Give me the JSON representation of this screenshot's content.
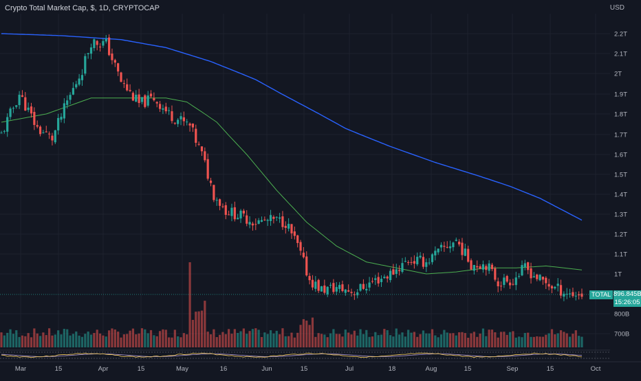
{
  "header": {
    "title": "Crypto Total Market Cap, $, 1D, CRYPTOCAP",
    "currency": "USD"
  },
  "price_label": {
    "series_name": "TOTAL",
    "value": "896.845B",
    "countdown": "15:26:05"
  },
  "colors": {
    "background": "#131722",
    "up": "#26a69a",
    "down": "#ef5350",
    "ma_long": "#2962ff",
    "ma_short": "#4caf50",
    "grid": "#1e222d",
    "axis_text": "#b2b5be"
  },
  "chart_data": {
    "type": "candlestick",
    "title": "Crypto Total Market Cap, $, 1D, CRYPTOCAP",
    "y_ticks": [
      "2.2T",
      "2.1T",
      "2T",
      "1.9T",
      "1.8T",
      "1.7T",
      "1.6T",
      "1.5T",
      "1.4T",
      "1.3T",
      "1.2T",
      "1.1T",
      "1T",
      "800B",
      "700B"
    ],
    "x_ticks": [
      "Mar",
      "15",
      "Apr",
      "15",
      "May",
      "16",
      "Jun",
      "15",
      "Jul",
      "18",
      "Aug",
      "15",
      "Sep",
      "15",
      "Oct"
    ],
    "y_range_T": [
      0.65,
      2.3
    ],
    "last_close_T": 0.896845,
    "close_keypoints_T": [
      [
        0,
        1.7
      ],
      [
        6,
        1.9
      ],
      [
        12,
        1.73
      ],
      [
        17,
        1.68
      ],
      [
        22,
        1.86
      ],
      [
        27,
        2.02
      ],
      [
        30,
        2.16
      ],
      [
        35,
        2.15
      ],
      [
        40,
        1.96
      ],
      [
        46,
        1.85
      ],
      [
        51,
        1.88
      ],
      [
        56,
        1.8
      ],
      [
        63,
        1.74
      ],
      [
        67,
        1.6
      ],
      [
        71,
        1.4
      ],
      [
        75,
        1.32
      ],
      [
        85,
        1.26
      ],
      [
        91,
        1.27
      ],
      [
        95,
        1.26
      ],
      [
        99,
        1.14
      ],
      [
        103,
        0.97
      ],
      [
        107,
        0.92
      ],
      [
        112,
        0.93
      ],
      [
        118,
        0.91
      ],
      [
        124,
        0.96
      ],
      [
        130,
        1.0
      ],
      [
        136,
        1.07
      ],
      [
        142,
        1.06
      ],
      [
        147,
        1.12
      ],
      [
        152,
        1.17
      ],
      [
        157,
        1.05
      ],
      [
        162,
        1.05
      ],
      [
        166,
        0.96
      ],
      [
        171,
        0.97
      ],
      [
        175,
        1.03
      ],
      [
        180,
        0.97
      ],
      [
        185,
        0.93
      ],
      [
        190,
        0.9
      ],
      [
        194,
        0.897
      ]
    ],
    "ma_short_keypoints_T": [
      [
        0,
        1.76
      ],
      [
        15,
        1.8
      ],
      [
        30,
        1.88
      ],
      [
        45,
        1.88
      ],
      [
        55,
        1.88
      ],
      [
        62,
        1.86
      ],
      [
        72,
        1.76
      ],
      [
        82,
        1.6
      ],
      [
        92,
        1.42
      ],
      [
        102,
        1.26
      ],
      [
        112,
        1.14
      ],
      [
        122,
        1.06
      ],
      [
        132,
        1.03
      ],
      [
        142,
        1.0
      ],
      [
        152,
        1.01
      ],
      [
        162,
        1.03
      ],
      [
        172,
        1.03
      ],
      [
        182,
        1.04
      ],
      [
        194,
        1.02
      ]
    ],
    "ma_long_keypoints_T": [
      [
        0,
        2.2
      ],
      [
        20,
        2.19
      ],
      [
        40,
        2.17
      ],
      [
        55,
        2.13
      ],
      [
        70,
        2.06
      ],
      [
        85,
        1.97
      ],
      [
        100,
        1.85
      ],
      [
        115,
        1.73
      ],
      [
        130,
        1.64
      ],
      [
        145,
        1.56
      ],
      [
        160,
        1.49
      ],
      [
        170,
        1.44
      ],
      [
        180,
        1.38
      ],
      [
        194,
        1.27
      ]
    ],
    "volume_pattern": "moderate daily volume bars; spikes around May 9-12 and mid-June",
    "oscillator_panel": "small indicator strip below volume (two oscillating lines)"
  }
}
